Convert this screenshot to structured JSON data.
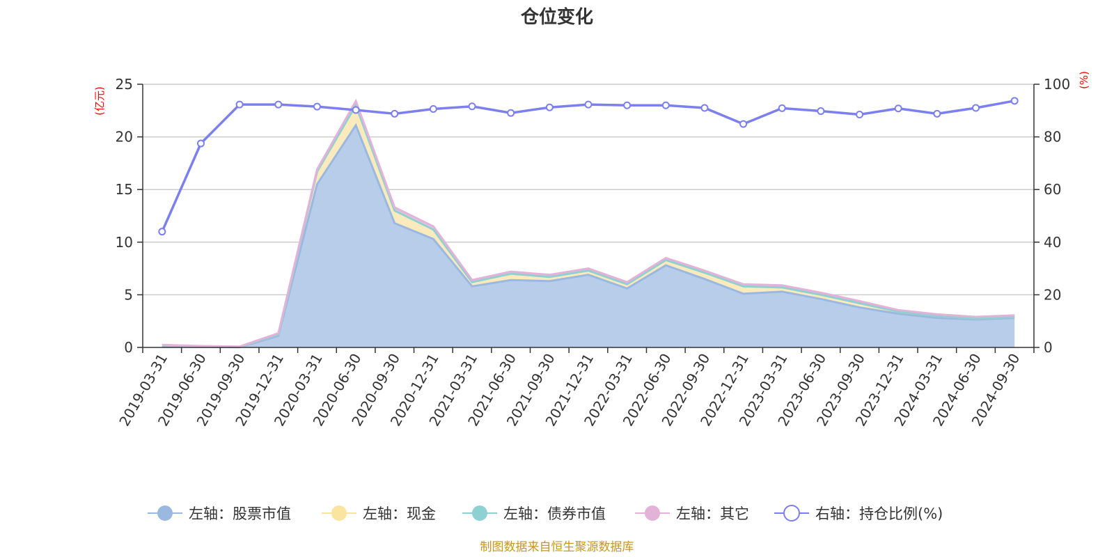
{
  "chart_data": {
    "type": "area",
    "title": "仓位变化",
    "categories": [
      "2019-03-31",
      "2019-06-30",
      "2019-09-30",
      "2019-12-31",
      "2020-03-31",
      "2020-06-30",
      "2020-09-30",
      "2020-12-31",
      "2021-03-31",
      "2021-06-30",
      "2021-09-30",
      "2021-12-31",
      "2022-03-31",
      "2022-06-30",
      "2022-09-30",
      "2022-12-31",
      "2023-03-31",
      "2023-06-30",
      "2023-09-30",
      "2023-12-31",
      "2024-03-31",
      "2024-06-30",
      "2024-09-30"
    ],
    "left_axis": {
      "unit": "(亿元)",
      "min": 0,
      "max": 25,
      "ticks": [
        0,
        5,
        10,
        15,
        20,
        25
      ]
    },
    "right_axis": {
      "unit": "(%)",
      "min": 0,
      "max": 100,
      "ticks": [
        0,
        20,
        40,
        60,
        80,
        100
      ]
    },
    "series": [
      {
        "name": "左轴：股票市值",
        "axis": "left",
        "color": "#9bb8e0",
        "fill": "#b8cdea",
        "values": [
          0.1,
          0.05,
          0.02,
          1.1,
          15.5,
          21.1,
          11.8,
          10.3,
          5.8,
          6.4,
          6.3,
          6.9,
          5.6,
          7.8,
          6.5,
          5.1,
          5.3,
          4.6,
          3.8,
          3.2,
          2.8,
          2.65,
          2.8
        ]
      },
      {
        "name": "左轴：现金",
        "axis": "left",
        "color": "#f9e4a0",
        "fill": "#fbeabc",
        "values": [
          0.1,
          0.05,
          0.04,
          0.15,
          1.2,
          1.9,
          1.2,
          0.9,
          0.4,
          0.6,
          0.4,
          0.4,
          0.4,
          0.5,
          0.6,
          0.7,
          0.4,
          0.4,
          0.4,
          0.2,
          0.2,
          0.1,
          0.1
        ]
      },
      {
        "name": "左轴：债券市值",
        "axis": "left",
        "color": "#8fd0d3",
        "fill": "#a8dbdd",
        "values": [
          0,
          0,
          0,
          0,
          0,
          0,
          0,
          0,
          0,
          0,
          0,
          0,
          0,
          0,
          0,
          0,
          0,
          0,
          0,
          0,
          0,
          0,
          0
        ]
      },
      {
        "name": "左轴：其它",
        "axis": "left",
        "color": "#e3b2d8",
        "fill": "#ecc4e3",
        "values": [
          0.05,
          0.03,
          0.02,
          0.1,
          0.2,
          0.4,
          0.3,
          0.3,
          0.2,
          0.2,
          0.2,
          0.2,
          0.2,
          0.2,
          0.2,
          0.2,
          0.2,
          0.2,
          0.2,
          0.15,
          0.15,
          0.15,
          0.15
        ]
      },
      {
        "name": "右轴：持仓比例(%)",
        "axis": "right",
        "color": "#7b7ff0",
        "values": [
          44.0,
          77.5,
          92.3,
          92.3,
          91.5,
          90.2,
          88.8,
          90.6,
          91.6,
          89.1,
          91.2,
          92.3,
          92.0,
          92.0,
          91.0,
          84.9,
          90.9,
          89.8,
          88.5,
          90.8,
          88.8,
          91.0,
          93.7
        ]
      }
    ],
    "legend_position": "bottom"
  },
  "source_note": "制图数据来自恒生聚源数据库"
}
